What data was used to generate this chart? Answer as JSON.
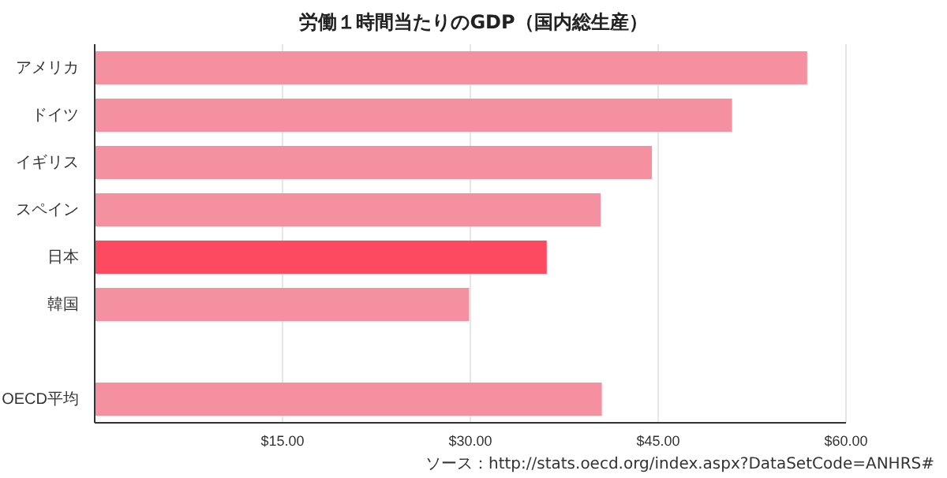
{
  "chart_data": {
    "type": "bar",
    "orientation": "horizontal",
    "title": "労働１時間当たりのGDP（国内総生産）",
    "categories": [
      "アメリカ",
      "ドイツ",
      "イギリス",
      "スペイン",
      "日本",
      "韓国",
      null,
      "OECD平均"
    ],
    "values": [
      56.9,
      50.9,
      44.5,
      40.4,
      36.1,
      29.9,
      null,
      40.5
    ],
    "colors": [
      "#f4909f",
      "#f4909f",
      "#f4909f",
      "#f4909f",
      "#fe4a60",
      "#f4909f",
      null,
      "#f4909f"
    ],
    "xlim": [
      0,
      60
    ],
    "xticks": [
      {
        "value": 15,
        "label": "$15.00"
      },
      {
        "value": 30,
        "label": "$30.00"
      },
      {
        "value": 45,
        "label": "$45.00"
      },
      {
        "value": 60,
        "label": "$60.00"
      }
    ],
    "grid": "x",
    "annotations": [
      "ソース：http://stats.oecd.org/index.aspx?DataSetCode=ANHRS#"
    ]
  }
}
